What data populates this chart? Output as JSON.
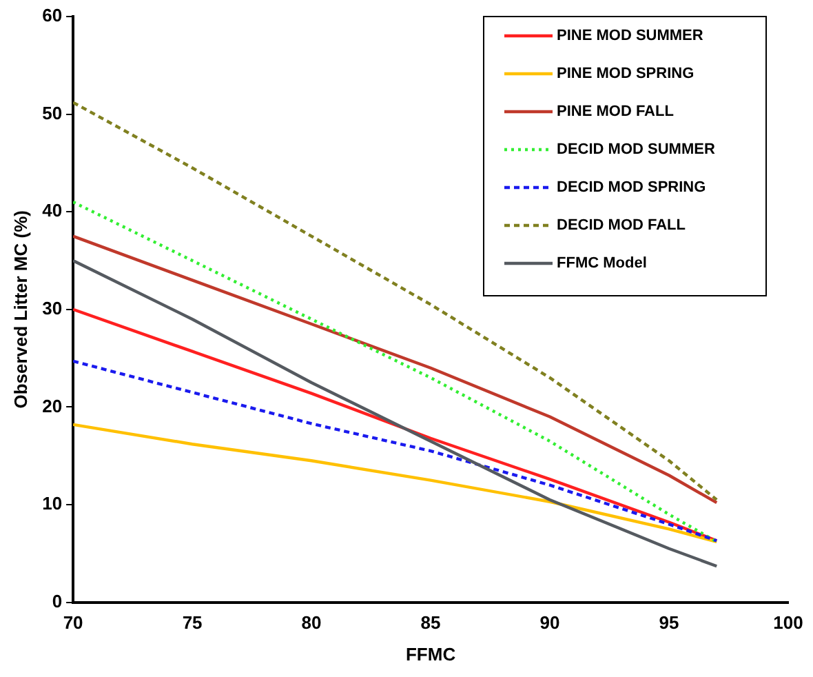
{
  "chart_data": {
    "type": "line",
    "xlabel": "FFMC",
    "ylabel": "Observed Litter MC (%)",
    "x": [
      70,
      75,
      80,
      85,
      90,
      95,
      97
    ],
    "xlim": [
      70,
      100
    ],
    "xticks": [
      70,
      75,
      80,
      85,
      90,
      95,
      100
    ],
    "ylim": [
      0,
      60
    ],
    "yticks": [
      0,
      10,
      20,
      30,
      40,
      50,
      60
    ],
    "grid": false,
    "legend": "top right",
    "marker": "none",
    "series": [
      {
        "name": "PINE MOD SUMMER",
        "color": "#ff2020",
        "line_style": "solid",
        "values": [
          30,
          25.7,
          21.4,
          16.8,
          12.6,
          8.2,
          6.3
        ]
      },
      {
        "name": "PINE MOD SPRING",
        "color": "#ffc000",
        "line_style": "solid",
        "values": [
          18.2,
          16.2,
          14.5,
          12.5,
          10.3,
          7.5,
          6.2
        ]
      },
      {
        "name": "PINE MOD FALL",
        "color": "#c0392b",
        "line_style": "solid",
        "values": [
          37.5,
          33,
          28.5,
          24,
          19,
          13,
          10.2
        ]
      },
      {
        "name": "DECID MOD SUMMER",
        "color": "#33ee33",
        "line_style": "dotted",
        "values": [
          41,
          35,
          29,
          23,
          16.5,
          9,
          6.2
        ]
      },
      {
        "name": "DECID MOD SPRING",
        "color": "#1a1aee",
        "line_style": "dashed",
        "values": [
          24.7,
          21.5,
          18.3,
          15.5,
          12,
          8,
          6.3
        ]
      },
      {
        "name": "DECID MOD FALL",
        "color": "#808020",
        "line_style": "dashed",
        "values": [
          51.2,
          44.5,
          37.5,
          30.5,
          23,
          14.5,
          10.5
        ]
      },
      {
        "name": "FFMC Model",
        "color": "#555a60",
        "line_style": "solid",
        "values": [
          35,
          29,
          22.5,
          16.5,
          10.5,
          5.5,
          3.7
        ]
      }
    ]
  }
}
